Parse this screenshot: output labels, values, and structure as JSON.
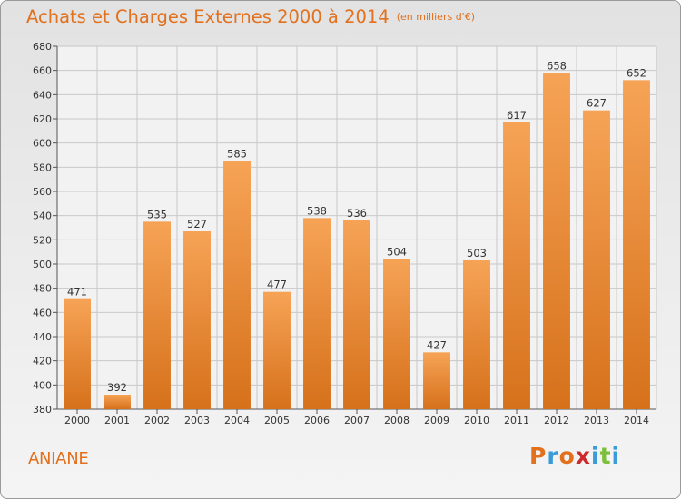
{
  "header": {
    "title": "Achats et Charges Externes 2000 à 2014",
    "unit": "(en milliers d'€)"
  },
  "footer": {
    "commune": "ANIANE",
    "logo_text": "Proxiti",
    "logo_colors": [
      "#e2701c",
      "#3a9bd8",
      "#e2701c",
      "#cc2a2a",
      "#3a9bd8",
      "#7bbf3a",
      "#3a9bd8"
    ]
  },
  "chart_data": {
    "type": "bar",
    "categories": [
      "2000",
      "2001",
      "2002",
      "2003",
      "2004",
      "2005",
      "2006",
      "2007",
      "2008",
      "2009",
      "2010",
      "2011",
      "2012",
      "2013",
      "2014"
    ],
    "values": [
      471,
      392,
      535,
      527,
      585,
      477,
      538,
      536,
      504,
      427,
      503,
      617,
      658,
      627,
      652
    ],
    "title": "Achats et Charges Externes 2000 à 2014",
    "xlabel": "",
    "ylabel": "",
    "ylim": [
      380,
      680
    ],
    "yticks": [
      380,
      400,
      420,
      440,
      460,
      480,
      500,
      520,
      540,
      560,
      580,
      600,
      620,
      640,
      660,
      680
    ],
    "grid": true,
    "bar_color_top": "#f6a356",
    "bar_color_bottom": "#d6711b"
  }
}
